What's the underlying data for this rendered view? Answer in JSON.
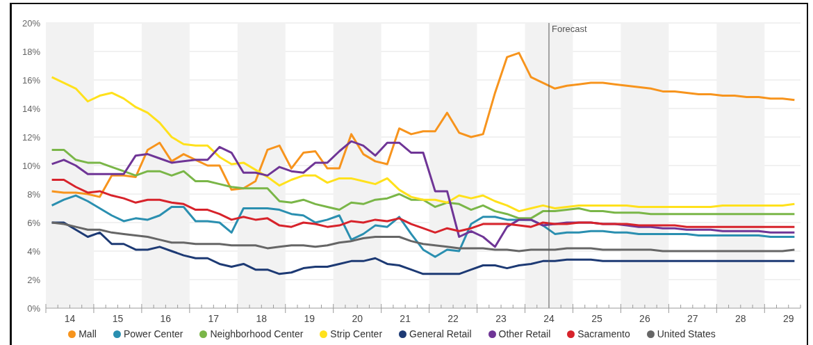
{
  "chart_data": {
    "type": "line",
    "x": [
      13.625,
      13.875,
      14.125,
      14.375,
      14.625,
      14.875,
      15.125,
      15.375,
      15.625,
      15.875,
      16.125,
      16.375,
      16.625,
      16.875,
      17.125,
      17.375,
      17.625,
      17.875,
      18.125,
      18.375,
      18.625,
      18.875,
      19.125,
      19.375,
      19.625,
      19.875,
      20.125,
      20.375,
      20.625,
      20.875,
      21.125,
      21.375,
      21.625,
      21.875,
      22.125,
      22.375,
      22.625,
      22.875,
      23.125,
      23.375,
      23.625,
      23.875,
      24.125,
      24.375,
      24.625,
      24.875,
      25.125,
      25.375,
      25.625,
      25.875,
      26.125,
      26.375,
      26.625,
      26.875,
      27.125,
      27.375,
      27.625,
      27.875,
      28.125,
      28.375,
      28.625,
      28.875,
      29.125
    ],
    "series": [
      {
        "name": "Mall",
        "color": "#f7941d",
        "values": [
          8.2,
          8.1,
          8.1,
          8.0,
          7.8,
          9.3,
          9.3,
          9.2,
          11.1,
          11.6,
          10.3,
          10.8,
          10.4,
          10.0,
          10.0,
          8.3,
          8.4,
          8.9,
          11.1,
          11.4,
          9.8,
          10.9,
          11.0,
          9.8,
          9.8,
          12.2,
          10.8,
          10.3,
          10.1,
          12.6,
          12.2,
          12.4,
          12.4,
          13.7,
          12.3,
          12.0,
          12.2,
          15.1,
          17.6,
          17.9,
          16.2,
          15.8,
          15.4,
          15.6,
          15.7,
          15.8,
          15.8,
          15.7,
          15.6,
          15.5,
          15.4,
          15.2,
          15.2,
          15.1,
          15.0,
          15.0,
          14.9,
          14.9,
          14.8,
          14.8,
          14.7,
          14.7,
          14.6
        ]
      },
      {
        "name": "Power Center",
        "color": "#2a8fb0",
        "values": [
          7.2,
          7.6,
          7.9,
          7.5,
          7.0,
          6.5,
          6.1,
          6.3,
          6.2,
          6.5,
          7.1,
          7.1,
          6.1,
          6.1,
          6.0,
          5.3,
          7.0,
          7.0,
          7.0,
          6.9,
          6.6,
          6.5,
          6.0,
          6.2,
          6.5,
          4.8,
          5.2,
          5.8,
          5.7,
          6.4,
          5.2,
          4.1,
          3.6,
          4.1,
          4.0,
          5.9,
          6.4,
          6.4,
          6.2,
          6.2,
          6.2,
          5.8,
          5.2,
          5.3,
          5.3,
          5.4,
          5.4,
          5.3,
          5.3,
          5.2,
          5.2,
          5.2,
          5.2,
          5.2,
          5.1,
          5.1,
          5.1,
          5.1,
          5.1,
          5.1,
          5.0,
          5.0,
          5.0
        ]
      },
      {
        "name": "Neighborhood Center",
        "color": "#7ab648",
        "values": [
          11.1,
          11.1,
          10.4,
          10.2,
          10.2,
          9.9,
          9.6,
          9.3,
          9.6,
          9.6,
          9.3,
          9.6,
          8.9,
          8.9,
          8.7,
          8.5,
          8.4,
          8.4,
          8.4,
          7.5,
          7.4,
          7.6,
          7.3,
          7.1,
          6.9,
          7.4,
          7.3,
          7.6,
          7.7,
          8.0,
          7.6,
          7.6,
          7.1,
          7.4,
          7.3,
          6.9,
          7.2,
          6.8,
          6.6,
          6.3,
          6.3,
          6.8,
          6.8,
          6.9,
          7.0,
          6.8,
          6.8,
          6.7,
          6.7,
          6.7,
          6.6,
          6.6,
          6.6,
          6.6,
          6.6,
          6.6,
          6.6,
          6.6,
          6.6,
          6.6,
          6.6,
          6.6,
          6.6
        ]
      },
      {
        "name": "Strip Center",
        "color": "#ffe11c",
        "values": [
          16.2,
          15.8,
          15.4,
          14.5,
          14.9,
          15.1,
          14.7,
          14.1,
          13.7,
          13.0,
          12.0,
          11.5,
          11.4,
          11.4,
          10.6,
          10.1,
          10.2,
          9.7,
          9.2,
          8.6,
          9.0,
          9.3,
          9.3,
          8.8,
          9.1,
          9.1,
          8.9,
          8.7,
          9.1,
          8.3,
          7.8,
          7.6,
          7.6,
          7.4,
          7.9,
          7.7,
          7.9,
          7.5,
          7.2,
          6.8,
          7.0,
          7.2,
          7.0,
          7.1,
          7.2,
          7.2,
          7.2,
          7.2,
          7.2,
          7.1,
          7.1,
          7.1,
          7.1,
          7.1,
          7.1,
          7.1,
          7.2,
          7.2,
          7.2,
          7.2,
          7.2,
          7.2,
          7.3
        ]
      },
      {
        "name": "General Retail",
        "color": "#1d3a74",
        "values": [
          6.0,
          6.0,
          5.5,
          5.0,
          5.3,
          4.5,
          4.5,
          4.1,
          4.1,
          4.3,
          4.0,
          3.7,
          3.5,
          3.5,
          3.1,
          2.9,
          3.1,
          2.7,
          2.7,
          2.4,
          2.5,
          2.8,
          2.9,
          2.9,
          3.1,
          3.3,
          3.3,
          3.5,
          3.1,
          3.0,
          2.7,
          2.4,
          2.4,
          2.4,
          2.4,
          2.7,
          3.0,
          3.0,
          2.8,
          3.0,
          3.1,
          3.3,
          3.3,
          3.4,
          3.4,
          3.4,
          3.3,
          3.3,
          3.3,
          3.3,
          3.3,
          3.3,
          3.3,
          3.3,
          3.3,
          3.3,
          3.3,
          3.3,
          3.3,
          3.3,
          3.3,
          3.3,
          3.3
        ]
      },
      {
        "name": "Other Retail",
        "color": "#6f3596",
        "values": [
          10.1,
          10.4,
          10.0,
          9.4,
          9.4,
          9.4,
          9.4,
          10.7,
          10.8,
          10.5,
          10.2,
          10.3,
          10.4,
          10.4,
          11.3,
          10.9,
          9.5,
          9.5,
          9.3,
          9.9,
          9.6,
          9.5,
          10.2,
          10.2,
          11.0,
          11.7,
          11.4,
          10.7,
          11.6,
          11.6,
          10.9,
          10.9,
          8.2,
          8.2,
          5.0,
          5.4,
          5.0,
          4.3,
          5.7,
          6.2,
          6.2,
          5.8,
          5.9,
          6.0,
          6.0,
          6.0,
          5.9,
          5.9,
          5.8,
          5.7,
          5.7,
          5.6,
          5.6,
          5.5,
          5.5,
          5.5,
          5.4,
          5.4,
          5.4,
          5.4,
          5.3,
          5.3,
          5.3
        ]
      },
      {
        "name": "Sacramento",
        "color": "#d7232b",
        "values": [
          9.0,
          9.0,
          8.5,
          8.1,
          8.2,
          7.9,
          7.7,
          7.4,
          7.6,
          7.6,
          7.4,
          7.3,
          6.9,
          6.9,
          6.6,
          6.2,
          6.4,
          6.2,
          6.3,
          5.8,
          5.7,
          6.0,
          5.9,
          5.7,
          5.8,
          6.1,
          6.0,
          6.2,
          6.1,
          6.3,
          5.9,
          5.6,
          5.3,
          5.6,
          5.4,
          5.6,
          5.9,
          5.9,
          5.9,
          5.8,
          5.7,
          6.0,
          5.9,
          5.9,
          6.0,
          6.0,
          5.9,
          5.9,
          5.9,
          5.8,
          5.8,
          5.8,
          5.8,
          5.7,
          5.7,
          5.7,
          5.7,
          5.7,
          5.7,
          5.7,
          5.7,
          5.7,
          5.7
        ]
      },
      {
        "name": "United States",
        "color": "#666666",
        "values": [
          6.0,
          5.9,
          5.7,
          5.5,
          5.5,
          5.3,
          5.2,
          5.1,
          5.0,
          4.8,
          4.6,
          4.6,
          4.5,
          4.5,
          4.5,
          4.4,
          4.4,
          4.4,
          4.2,
          4.3,
          4.4,
          4.4,
          4.3,
          4.4,
          4.6,
          4.7,
          4.9,
          5.0,
          5.0,
          5.0,
          4.7,
          4.5,
          4.4,
          4.3,
          4.2,
          4.2,
          4.2,
          4.1,
          4.1,
          4.0,
          4.1,
          4.1,
          4.1,
          4.2,
          4.2,
          4.2,
          4.1,
          4.1,
          4.1,
          4.1,
          4.1,
          4.0,
          4.0,
          4.0,
          4.0,
          4.0,
          4.0,
          4.0,
          4.0,
          4.0,
          4.0,
          4.0,
          4.1
        ]
      }
    ],
    "xlim": [
      13.5,
      29.25
    ],
    "xticks": [
      {
        "value": 13.5,
        "label": null
      },
      {
        "value": 13.75,
        "label": null
      },
      14,
      {
        "value": 14.25,
        "label": null
      },
      {
        "value": 14.5,
        "label": null
      },
      {
        "value": 14.75,
        "label": null
      },
      15,
      {
        "value": 15.25,
        "label": null
      },
      {
        "value": 15.5,
        "label": null
      },
      {
        "value": 15.75,
        "label": null
      },
      16,
      {
        "value": 16.25,
        "label": null
      },
      {
        "value": 16.5,
        "label": null
      },
      {
        "value": 16.75,
        "label": null
      },
      17,
      {
        "value": 17.25,
        "label": null
      },
      {
        "value": 17.5,
        "label": null
      },
      {
        "value": 17.75,
        "label": null
      },
      18,
      {
        "value": 18.25,
        "label": null
      },
      {
        "value": 18.5,
        "label": null
      },
      {
        "value": 18.75,
        "label": null
      },
      19,
      {
        "value": 19.25,
        "label": null
      },
      {
        "value": 19.5,
        "label": null
      },
      {
        "value": 19.75,
        "label": null
      },
      20,
      {
        "value": 20.25,
        "label": null
      },
      {
        "value": 20.5,
        "label": null
      },
      {
        "value": 20.75,
        "label": null
      },
      21,
      {
        "value": 21.25,
        "label": null
      },
      {
        "value": 21.5,
        "label": null
      },
      {
        "value": 21.75,
        "label": null
      },
      22,
      {
        "value": 22.25,
        "label": null
      },
      {
        "value": 22.5,
        "label": null
      },
      {
        "value": 22.75,
        "label": null
      },
      23,
      {
        "value": 23.25,
        "label": null
      },
      {
        "value": 23.5,
        "label": null
      },
      {
        "value": 23.75,
        "label": null
      },
      24,
      {
        "value": 24.25,
        "label": null
      },
      {
        "value": 24.5,
        "label": null
      },
      {
        "value": 24.75,
        "label": null
      },
      25,
      {
        "value": 25.25,
        "label": null
      },
      {
        "value": 25.5,
        "label": null
      },
      {
        "value": 25.75,
        "label": null
      },
      26,
      {
        "value": 26.25,
        "label": null
      },
      {
        "value": 26.5,
        "label": null
      },
      {
        "value": 26.75,
        "label": null
      },
      27,
      {
        "value": 27.25,
        "label": null
      },
      {
        "value": 27.5,
        "label": null
      },
      {
        "value": 27.75,
        "label": null
      },
      28,
      {
        "value": 28.25,
        "label": null
      },
      {
        "value": 28.5,
        "label": null
      },
      {
        "value": 28.75,
        "label": null
      },
      29,
      {
        "value": 29.25,
        "label": null
      }
    ],
    "ylim": [
      0,
      20
    ],
    "yticks": [
      {
        "value": 0,
        "label": "0%"
      },
      {
        "value": 2,
        "label": "2%"
      },
      {
        "value": 4,
        "label": "4%"
      },
      {
        "value": 6,
        "label": "6%"
      },
      {
        "value": 8,
        "label": "8%"
      },
      {
        "value": 10,
        "label": "10%"
      },
      {
        "value": 12,
        "label": "12%"
      },
      {
        "value": 14,
        "label": "14%"
      },
      {
        "value": 16,
        "label": "16%"
      },
      {
        "value": 18,
        "label": "18%"
      },
      {
        "value": 20,
        "label": "20%"
      }
    ],
    "grid": "y",
    "legend": "bottom",
    "line_style": "solid",
    "ref_lines": [
      {
        "axis": "x",
        "value": 24,
        "label": "Forecast",
        "color": "#555555"
      }
    ],
    "bands": [
      {
        "axis": "x",
        "from": 13.5,
        "to": 14.5,
        "color": "#f2f2f2"
      },
      {
        "axis": "x",
        "from": 15.5,
        "to": 16.5,
        "color": "#f2f2f2"
      },
      {
        "axis": "x",
        "from": 17.5,
        "to": 18.5,
        "color": "#f2f2f2"
      },
      {
        "axis": "x",
        "from": 19.5,
        "to": 20.5,
        "color": "#f2f2f2"
      },
      {
        "axis": "x",
        "from": 21.5,
        "to": 22.5,
        "color": "#f2f2f2"
      },
      {
        "axis": "x",
        "from": 23.5,
        "to": 24.5,
        "color": "#f2f2f2"
      },
      {
        "axis": "x",
        "from": 25.5,
        "to": 26.5,
        "color": "#f2f2f2"
      },
      {
        "axis": "x",
        "from": 27.5,
        "to": 28.5,
        "color": "#f2f2f2"
      }
    ]
  }
}
